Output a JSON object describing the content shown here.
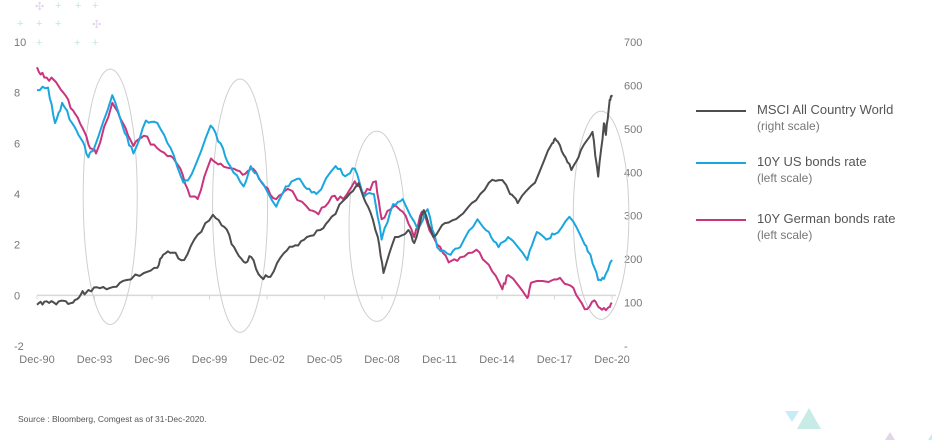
{
  "chart_data": {
    "type": "line",
    "title": "",
    "x_tick_labels": [
      "Dec-90",
      "Dec-93",
      "Dec-96",
      "Dec-99",
      "Dec-02",
      "Dec-05",
      "Dec-08",
      "Dec-11",
      "Dec-14",
      "Dec-17",
      "Dec-20"
    ],
    "x_range": [
      1990.92,
      2020.92
    ],
    "left_axis": {
      "label": "",
      "range": [
        -2,
        10
      ],
      "tick_labels": [
        "-2",
        "0",
        "2",
        "4",
        "6",
        "8",
        "10"
      ]
    },
    "right_axis": {
      "label": "",
      "range": [
        0,
        700
      ],
      "tick_labels": [
        "-",
        "100",
        "200",
        "300",
        "400",
        "500",
        "600",
        "700"
      ]
    },
    "series": [
      {
        "name": "MSCI All Country World",
        "note": "(right scale)",
        "axis": "right",
        "color": "#4d4d4d",
        "points": [
          [
            1990.92,
            95
          ],
          [
            1991.3,
            102
          ],
          [
            1991.8,
            100
          ],
          [
            1992.3,
            104
          ],
          [
            1992.8,
            100
          ],
          [
            1993.2,
            118
          ],
          [
            1993.6,
            129
          ],
          [
            1994.2,
            133
          ],
          [
            1994.9,
            136
          ],
          [
            1995.6,
            152
          ],
          [
            1996.5,
            168
          ],
          [
            1997.2,
            180
          ],
          [
            1997.5,
            210
          ],
          [
            1998.0,
            215
          ],
          [
            1998.6,
            198
          ],
          [
            1999.3,
            256
          ],
          [
            2000.1,
            302
          ],
          [
            2000.7,
            274
          ],
          [
            2001.2,
            228
          ],
          [
            2001.7,
            194
          ],
          [
            2002.1,
            205
          ],
          [
            2002.6,
            159
          ],
          [
            2003.1,
            159
          ],
          [
            2003.8,
            214
          ],
          [
            2004.4,
            232
          ],
          [
            2005.0,
            251
          ],
          [
            2005.7,
            267
          ],
          [
            2006.3,
            298
          ],
          [
            2007.1,
            343
          ],
          [
            2007.7,
            375
          ],
          [
            2008.2,
            320
          ],
          [
            2008.7,
            251
          ],
          [
            2009.0,
            168
          ],
          [
            2009.6,
            251
          ],
          [
            2010.3,
            267
          ],
          [
            2010.6,
            237
          ],
          [
            2011.1,
            313
          ],
          [
            2011.6,
            251
          ],
          [
            2012.2,
            283
          ],
          [
            2013.0,
            300
          ],
          [
            2013.6,
            329
          ],
          [
            2014.5,
            376
          ],
          [
            2015.2,
            382
          ],
          [
            2015.6,
            350
          ],
          [
            2016.0,
            329
          ],
          [
            2016.9,
            376
          ],
          [
            2017.8,
            467
          ],
          [
            2018.0,
            474
          ],
          [
            2018.4,
            440
          ],
          [
            2018.8,
            405
          ],
          [
            2019.3,
            451
          ],
          [
            2019.9,
            493
          ],
          [
            2020.2,
            390
          ],
          [
            2020.5,
            513
          ],
          [
            2020.6,
            486
          ],
          [
            2020.8,
            567
          ],
          [
            2020.92,
            578
          ]
        ]
      },
      {
        "name": "10Y US bonds rate",
        "note": "(left scale)",
        "axis": "left",
        "color": "#1aa7e0",
        "points": [
          [
            1990.92,
            8.1
          ],
          [
            1991.5,
            8.2
          ],
          [
            1991.86,
            6.8
          ],
          [
            1992.23,
            7.6
          ],
          [
            1992.75,
            6.8
          ],
          [
            1993.2,
            6.2
          ],
          [
            1993.6,
            5.45
          ],
          [
            1993.9,
            5.8
          ],
          [
            1994.85,
            7.9
          ],
          [
            1995.5,
            6.4
          ],
          [
            1995.95,
            5.6
          ],
          [
            1996.6,
            6.9
          ],
          [
            1997.2,
            6.8
          ],
          [
            1997.9,
            5.8
          ],
          [
            1998.56,
            4.45
          ],
          [
            1999.0,
            4.8
          ],
          [
            1999.98,
            6.7
          ],
          [
            2000.5,
            6.0
          ],
          [
            2001.0,
            5.1
          ],
          [
            2001.7,
            4.3
          ],
          [
            2002.07,
            5.1
          ],
          [
            2002.5,
            4.6
          ],
          [
            2003.4,
            3.5
          ],
          [
            2003.9,
            4.3
          ],
          [
            2004.5,
            4.6
          ],
          [
            2005.0,
            4.2
          ],
          [
            2005.5,
            4.0
          ],
          [
            2006.5,
            5.1
          ],
          [
            2007.0,
            4.7
          ],
          [
            2007.5,
            5.0
          ],
          [
            2008.0,
            3.9
          ],
          [
            2008.5,
            4.0
          ],
          [
            2008.9,
            2.2
          ],
          [
            2009.5,
            3.6
          ],
          [
            2010.0,
            3.8
          ],
          [
            2010.8,
            2.6
          ],
          [
            2011.3,
            3.4
          ],
          [
            2011.8,
            1.9
          ],
          [
            2012.5,
            1.6
          ],
          [
            2013.0,
            1.9
          ],
          [
            2013.9,
            3.0
          ],
          [
            2014.5,
            2.5
          ],
          [
            2015.0,
            1.9
          ],
          [
            2015.5,
            2.3
          ],
          [
            2016.5,
            1.4
          ],
          [
            2017.0,
            2.5
          ],
          [
            2017.5,
            2.2
          ],
          [
            2017.9,
            2.4
          ],
          [
            2018.7,
            3.1
          ],
          [
            2019.5,
            2.0
          ],
          [
            2019.8,
            1.6
          ],
          [
            2020.2,
            0.6
          ],
          [
            2020.5,
            0.65
          ],
          [
            2020.92,
            1.4
          ]
        ]
      },
      {
        "name": "10Y German bonds rate",
        "note": "(left scale)",
        "axis": "left",
        "color": "#c8357e",
        "points": [
          [
            1990.92,
            9.0
          ],
          [
            1991.3,
            8.6
          ],
          [
            1991.8,
            8.5
          ],
          [
            1992.3,
            8.0
          ],
          [
            1992.8,
            7.3
          ],
          [
            1993.3,
            6.6
          ],
          [
            1993.7,
            5.8
          ],
          [
            1994.0,
            5.6
          ],
          [
            1994.85,
            7.6
          ],
          [
            1995.4,
            6.8
          ],
          [
            1995.95,
            5.9
          ],
          [
            1996.5,
            6.3
          ],
          [
            1997.2,
            5.8
          ],
          [
            1997.9,
            5.5
          ],
          [
            1998.4,
            5.0
          ],
          [
            1998.9,
            3.9
          ],
          [
            1999.3,
            3.8
          ],
          [
            2000.0,
            5.4
          ],
          [
            2000.5,
            5.2
          ],
          [
            2001.2,
            5.0
          ],
          [
            2001.8,
            4.8
          ],
          [
            2002.2,
            5.0
          ],
          [
            2002.8,
            4.3
          ],
          [
            2003.4,
            3.8
          ],
          [
            2004.0,
            4.2
          ],
          [
            2005.0,
            3.5
          ],
          [
            2005.6,
            3.2
          ],
          [
            2006.3,
            3.9
          ],
          [
            2006.9,
            3.8
          ],
          [
            2007.5,
            4.5
          ],
          [
            2008.0,
            4.0
          ],
          [
            2008.6,
            4.5
          ],
          [
            2008.9,
            3.0
          ],
          [
            2009.5,
            3.5
          ],
          [
            2010.0,
            3.3
          ],
          [
            2010.6,
            2.3
          ],
          [
            2011.0,
            3.3
          ],
          [
            2011.8,
            2.0
          ],
          [
            2012.4,
            1.3
          ],
          [
            2013.0,
            1.5
          ],
          [
            2013.85,
            1.8
          ],
          [
            2014.5,
            1.2
          ],
          [
            2015.2,
            0.24
          ],
          [
            2015.5,
            0.8
          ],
          [
            2016.5,
            -0.1
          ],
          [
            2016.7,
            0.5
          ],
          [
            2017.9,
            0.63
          ],
          [
            2018.3,
            0.6
          ],
          [
            2018.9,
            0.3
          ],
          [
            2019.5,
            -0.55
          ],
          [
            2020.0,
            -0.2
          ],
          [
            2020.3,
            -0.5
          ],
          [
            2020.7,
            -0.5
          ],
          [
            2020.92,
            -0.3
          ]
        ]
      }
    ],
    "highlight_periods": [
      {
        "x": [
          1993.33,
          1996.15
        ],
        "y": [
          -1.15,
          8.93
        ]
      },
      {
        "x": [
          2000.08,
          2002.95
        ],
        "y": [
          -1.46,
          8.54
        ]
      },
      {
        "x": [
          2007.2,
          2010.1
        ],
        "y": [
          -1.03,
          6.48
        ]
      },
      {
        "x": [
          2018.9,
          2021.8
        ],
        "y": [
          -0.95,
          7.27
        ]
      }
    ],
    "grid": false,
    "legend_position": "right"
  },
  "source": "Source : Bloomberg, Comgest as of 31-Dec-2020."
}
